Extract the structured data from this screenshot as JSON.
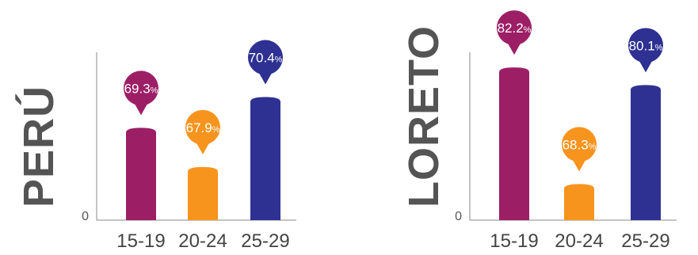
{
  "chart_data": [
    {
      "type": "bar",
      "region": "PERÚ",
      "categories": [
        "15-19",
        "20-24",
        "25-29"
      ],
      "values": [
        69.3,
        67.9,
        70.4
      ],
      "labels": [
        "69.3",
        "67.9",
        "70.4"
      ],
      "unit": "%",
      "zero_label": "0",
      "ylim": [
        66.0,
        72.0
      ],
      "colors": [
        "#9c1f66",
        "#f7941d",
        "#2e3192"
      ]
    },
    {
      "type": "bar",
      "region": "LORETO",
      "categories": [
        "15-19",
        "20-24",
        "25-29"
      ],
      "values": [
        82.2,
        68.3,
        80.1
      ],
      "labels": [
        "82.2",
        "68.3",
        "80.1"
      ],
      "unit": "%",
      "zero_label": "0",
      "ylim": [
        64.0,
        84.0
      ],
      "colors": [
        "#9c1f66",
        "#f7941d",
        "#2e3192"
      ]
    }
  ]
}
